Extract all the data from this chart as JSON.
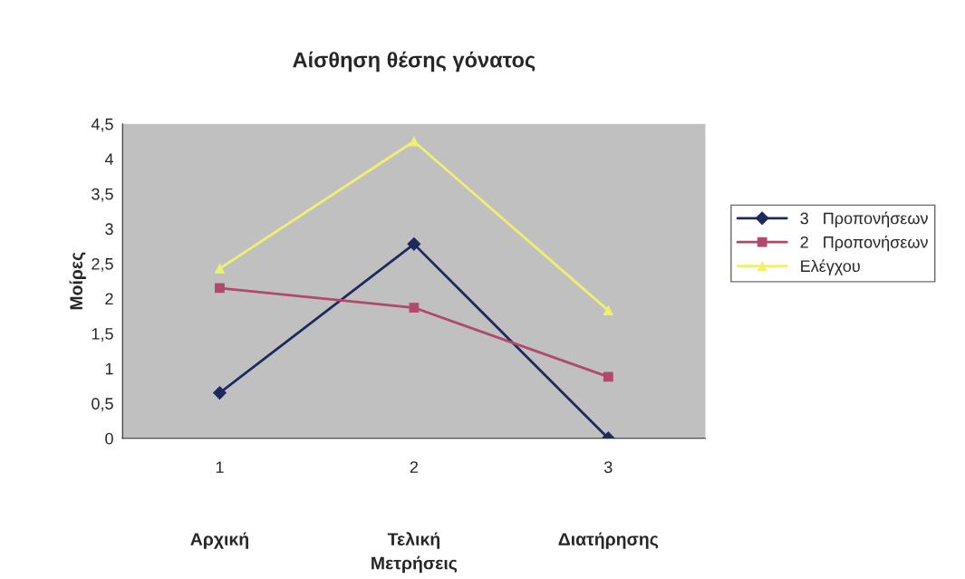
{
  "chart_data": {
    "type": "line",
    "title": "Αίσθηση θέσης γόνατος",
    "ylabel": "Μοίρες",
    "xlabel": "Μετρήσεις",
    "categories": [
      "1",
      "2",
      "3"
    ],
    "annotations": [
      "Αρχική",
      "Τελική",
      "Διατήρησης"
    ],
    "series": [
      {
        "name": "3   Προπονήσεων",
        "color": "#1f2a5c",
        "marker": "diamond",
        "values": [
          0.65,
          2.78,
          0
        ]
      },
      {
        "name": "2   Προπονήσεων",
        "color": "#b04a6a",
        "marker": "square",
        "values": [
          2.15,
          1.87,
          0.88
        ]
      },
      {
        "name": "Ελέγχου",
        "color": "#f0f070",
        "marker": "triangle",
        "values": [
          2.43,
          4.25,
          1.83
        ]
      }
    ],
    "ylim": [
      0,
      4.5
    ],
    "yticks": [
      {
        "value": 0,
        "label": "0"
      },
      {
        "value": 0.5,
        "label": "0,5"
      },
      {
        "value": 1,
        "label": "1"
      },
      {
        "value": 1.5,
        "label": "1,5"
      },
      {
        "value": 2,
        "label": "2"
      },
      {
        "value": 2.5,
        "label": "2,5"
      },
      {
        "value": 3,
        "label": "3"
      },
      {
        "value": 3.5,
        "label": "3,5"
      },
      {
        "value": 4,
        "label": "4"
      },
      {
        "value": 4.5,
        "label": "4,5"
      }
    ],
    "grid": false,
    "legend": "right",
    "line_style": "solid"
  }
}
